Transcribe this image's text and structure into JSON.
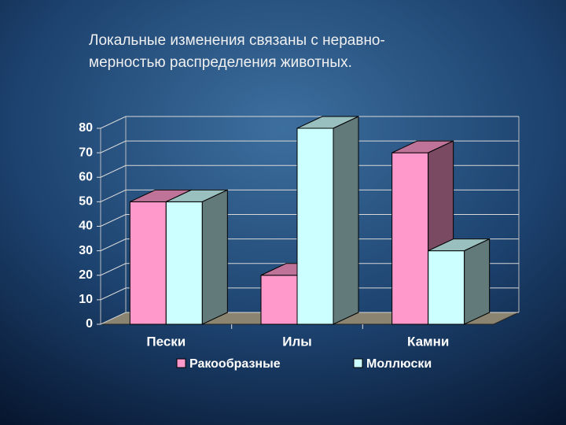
{
  "chart_data": {
    "type": "bar3d",
    "title": [
      "Локальные изменения связаны с неравно-",
      "мерностью распределения животных."
    ],
    "categories": [
      "Пески",
      "Илы",
      "Камни"
    ],
    "series": [
      {
        "name": "Ракообразные",
        "color": "#ff99cc",
        "values": [
          50,
          20,
          70
        ]
      },
      {
        "name": "Моллюски",
        "color": "#ccffff",
        "values": [
          50,
          80,
          30
        ]
      }
    ],
    "ylim": [
      0,
      80
    ],
    "yticks": [
      0,
      10,
      20,
      30,
      40,
      50,
      60,
      70,
      80
    ],
    "grid": true
  }
}
